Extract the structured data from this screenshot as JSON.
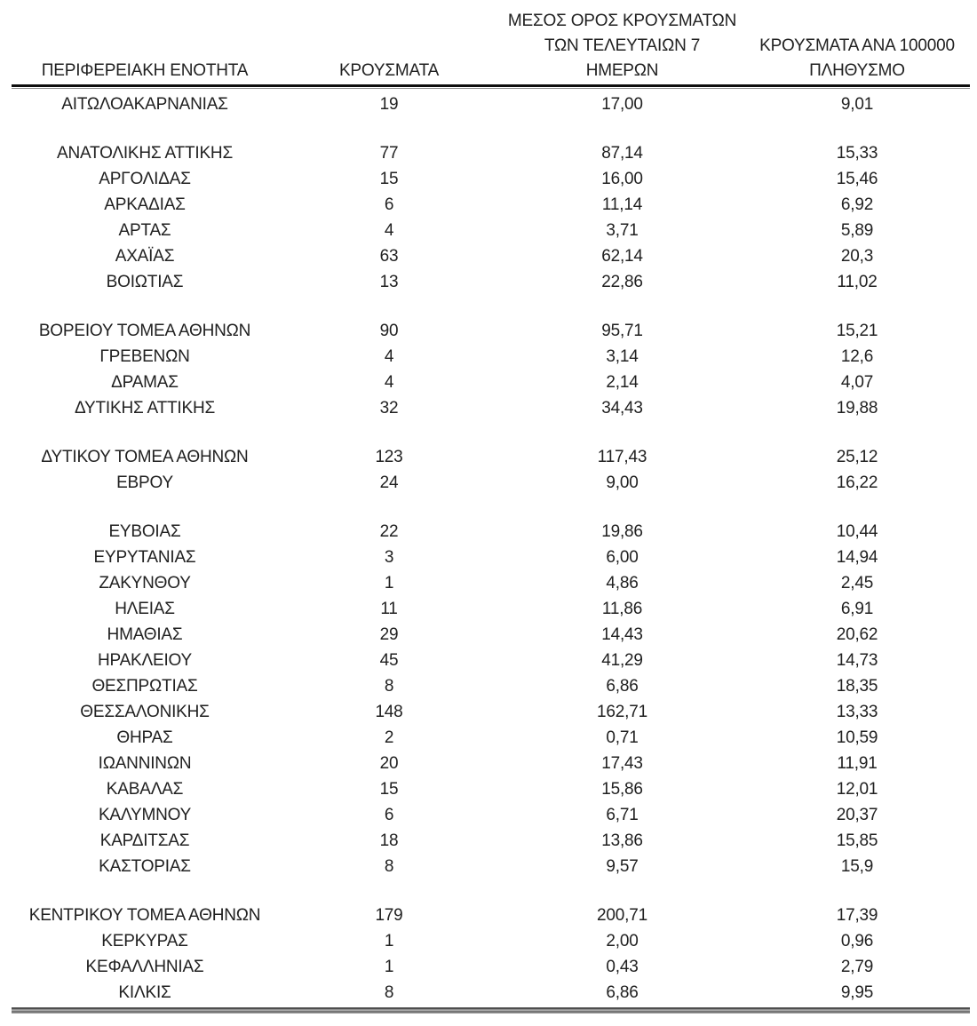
{
  "table": {
    "headers": {
      "region": "ΠΕΡΙΦΕΡΕΙΑΚΗ ΕΝΟΤΗΤΑ",
      "cases": "ΚΡΟΥΣΜΑΤΑ",
      "avg7_lines": [
        "ΜΕΣΟΣ ΟΡΟΣ ΚΡΟΥΣΜΑΤΩΝ",
        "ΤΩΝ ΤΕΛΕΥΤΑΙΩΝ 7",
        "ΗΜΕΡΩΝ"
      ],
      "per100k_lines": [
        "ΚΡΟΥΣΜΑΤΑ ΑΝΑ 100000",
        "ΠΛΗΘΥΣΜΟ"
      ]
    },
    "column_keys": [
      "region",
      "cases",
      "avg7",
      "per100k"
    ],
    "groups": [
      [
        {
          "region": "ΑΙΤΩΛΟΑΚΑΡΝΑΝΙΑΣ",
          "cases": "19",
          "avg7": "17,00",
          "per100k": "9,01"
        }
      ],
      [
        {
          "region": "ΑΝΑΤΟΛΙΚΗΣ ΑΤΤΙΚΗΣ",
          "cases": "77",
          "avg7": "87,14",
          "per100k": "15,33"
        },
        {
          "region": "ΑΡΓΟΛΙΔΑΣ",
          "cases": "15",
          "avg7": "16,00",
          "per100k": "15,46"
        },
        {
          "region": "ΑΡΚΑΔΙΑΣ",
          "cases": "6",
          "avg7": "11,14",
          "per100k": "6,92"
        },
        {
          "region": "ΑΡΤΑΣ",
          "cases": "4",
          "avg7": "3,71",
          "per100k": "5,89"
        },
        {
          "region": "ΑΧΑΪΑΣ",
          "cases": "63",
          "avg7": "62,14",
          "per100k": "20,3"
        },
        {
          "region": "ΒΟΙΩΤΙΑΣ",
          "cases": "13",
          "avg7": "22,86",
          "per100k": "11,02"
        }
      ],
      [
        {
          "region": "ΒΟΡΕΙΟΥ ΤΟΜΕΑ ΑΘΗΝΩΝ",
          "cases": "90",
          "avg7": "95,71",
          "per100k": "15,21"
        },
        {
          "region": "ΓΡΕΒΕΝΩΝ",
          "cases": "4",
          "avg7": "3,14",
          "per100k": "12,6"
        },
        {
          "region": "ΔΡΑΜΑΣ",
          "cases": "4",
          "avg7": "2,14",
          "per100k": "4,07"
        },
        {
          "region": "ΔΥΤΙΚΗΣ ΑΤΤΙΚΗΣ",
          "cases": "32",
          "avg7": "34,43",
          "per100k": "19,88"
        }
      ],
      [
        {
          "region": "ΔΥΤΙΚΟΥ ΤΟΜΕΑ ΑΘΗΝΩΝ",
          "cases": "123",
          "avg7": "117,43",
          "per100k": "25,12"
        },
        {
          "region": "ΕΒΡΟΥ",
          "cases": "24",
          "avg7": "9,00",
          "per100k": "16,22"
        }
      ],
      [
        {
          "region": "ΕΥΒΟΙΑΣ",
          "cases": "22",
          "avg7": "19,86",
          "per100k": "10,44"
        },
        {
          "region": "ΕΥΡΥΤΑΝΙΑΣ",
          "cases": "3",
          "avg7": "6,00",
          "per100k": "14,94"
        },
        {
          "region": "ΖΑΚΥΝΘΟΥ",
          "cases": "1",
          "avg7": "4,86",
          "per100k": "2,45"
        },
        {
          "region": "ΗΛΕΙΑΣ",
          "cases": "11",
          "avg7": "11,86",
          "per100k": "6,91"
        },
        {
          "region": "ΗΜΑΘΙΑΣ",
          "cases": "29",
          "avg7": "14,43",
          "per100k": "20,62"
        },
        {
          "region": "ΗΡΑΚΛΕΙΟΥ",
          "cases": "45",
          "avg7": "41,29",
          "per100k": "14,73"
        },
        {
          "region": "ΘΕΣΠΡΩΤΙΑΣ",
          "cases": "8",
          "avg7": "6,86",
          "per100k": "18,35"
        },
        {
          "region": "ΘΕΣΣΑΛΟΝΙΚΗΣ",
          "cases": "148",
          "avg7": "162,71",
          "per100k": "13,33"
        },
        {
          "region": "ΘΗΡΑΣ",
          "cases": "2",
          "avg7": "0,71",
          "per100k": "10,59"
        },
        {
          "region": "ΙΩΑΝΝΙΝΩΝ",
          "cases": "20",
          "avg7": "17,43",
          "per100k": "11,91"
        },
        {
          "region": "ΚΑΒΑΛΑΣ",
          "cases": "15",
          "avg7": "15,86",
          "per100k": "12,01"
        },
        {
          "region": "ΚΑΛΥΜΝΟΥ",
          "cases": "6",
          "avg7": "6,71",
          "per100k": "20,37"
        },
        {
          "region": "ΚΑΡΔΙΤΣΑΣ",
          "cases": "18",
          "avg7": "13,86",
          "per100k": "15,85"
        },
        {
          "region": "ΚΑΣΤΟΡΙΑΣ",
          "cases": "8",
          "avg7": "9,57",
          "per100k": "15,9"
        }
      ],
      [
        {
          "region": "ΚΕΝΤΡΙΚΟΥ ΤΟΜΕΑ ΑΘΗΝΩΝ",
          "cases": "179",
          "avg7": "200,71",
          "per100k": "17,39"
        },
        {
          "region": "ΚΕΡΚΥΡΑΣ",
          "cases": "1",
          "avg7": "2,00",
          "per100k": "0,96"
        },
        {
          "region": "ΚΕΦΑΛΛΗΝΙΑΣ",
          "cases": "1",
          "avg7": "0,43",
          "per100k": "2,79"
        },
        {
          "region": "ΚΙΛΚΙΣ",
          "cases": "8",
          "avg7": "6,86",
          "per100k": "9,95"
        }
      ]
    ]
  },
  "colors": {
    "text": "#212121",
    "header_rule": "#0d0d0d",
    "header_rule_echo": "#8d8d8d",
    "bottom_rule": "#767676"
  }
}
